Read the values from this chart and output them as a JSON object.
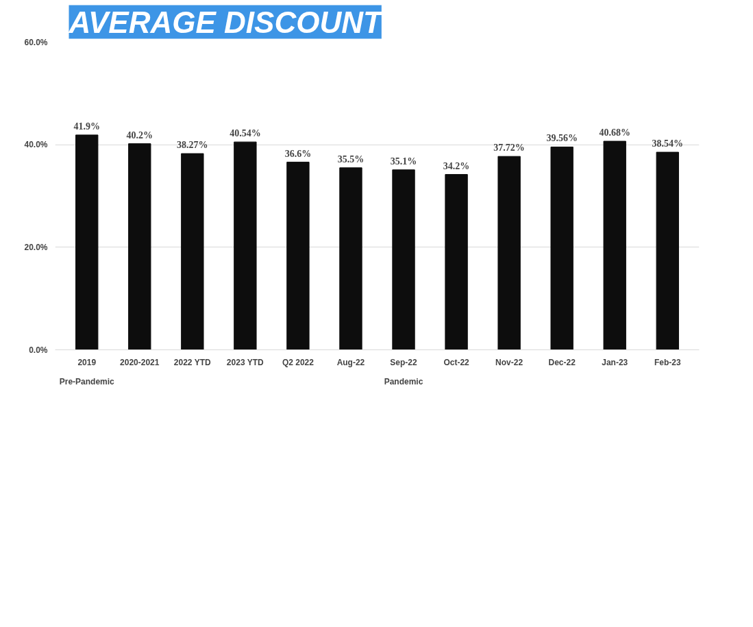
{
  "chart_data": {
    "type": "bar",
    "title": "AVERAGE DISCOUNT",
    "categories": [
      "2019",
      "2020-2021",
      "2022 YTD",
      "2023 YTD",
      "Q2 2022",
      "Aug-22",
      "Sep-22",
      "Oct-22",
      "Nov-22",
      "Dec-22",
      "Jan-23",
      "Feb-23"
    ],
    "values": [
      41.9,
      40.2,
      38.27,
      40.54,
      36.6,
      35.5,
      35.1,
      34.2,
      37.72,
      39.56,
      40.68,
      38.54
    ],
    "value_labels": [
      "41.9%",
      "40.2%",
      "38.27%",
      "40.54%",
      "36.6%",
      "35.5%",
      "35.1%",
      "34.2%",
      "37.72%",
      "39.56%",
      "40.68%",
      "38.54%"
    ],
    "color": "#0d0d0d",
    "ylim": [
      0,
      60
    ],
    "yticks": [
      {
        "value": 0,
        "label": "0.0%"
      },
      {
        "value": 20,
        "label": "20.0%"
      },
      {
        "value": 40,
        "label": "40.0%"
      },
      {
        "value": 60,
        "label": "60.0%"
      }
    ],
    "grid": "y",
    "annotations": [
      "Pre-Pandemic",
      "Pandemic"
    ]
  }
}
